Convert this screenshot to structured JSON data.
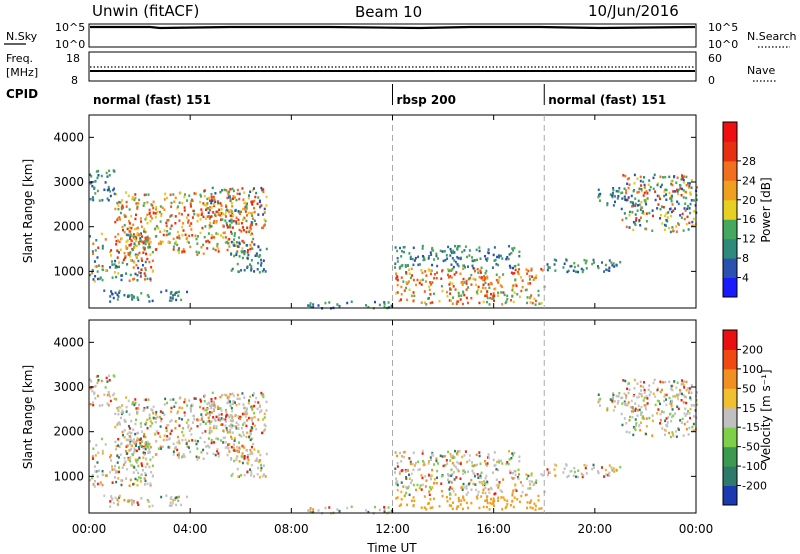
{
  "header": {
    "radar": "Unwin (fitACF)",
    "beam": "Beam 10",
    "date": "10/Jun/2016"
  },
  "params": {
    "nsky_label": "N.Sky",
    "nsearch_label": "N.Search",
    "freq_label_1": "Freq.",
    "freq_label_2": "[MHz]",
    "nave_label": "Nave",
    "cpid_label": "CPID",
    "nsky_ticks": [
      "10^5",
      "10^0"
    ],
    "nsearch_ticks": [
      "10^5",
      "10^0"
    ],
    "freq_ticks": [
      "18",
      "8"
    ],
    "nave_ticks": [
      "60",
      "0"
    ]
  },
  "cpid_segments": [
    {
      "label": "normal (fast) 151",
      "start": 0,
      "end": 12
    },
    {
      "label": "rbsp 200",
      "start": 12,
      "end": 18
    },
    {
      "label": "normal (fast) 151",
      "start": 18,
      "end": 24
    }
  ],
  "chart_data": [
    {
      "type": "heatmap",
      "quantity": "power",
      "ylabel": "Slant Range [km]",
      "xlabel": "Time UT",
      "xlim": [
        0,
        24
      ],
      "ylim": [
        180,
        4500
      ],
      "yticks": [
        1000,
        2000,
        3000,
        4000
      ],
      "colorbar_label": "Power [dB]",
      "colorbar_ticks": [
        "4",
        "8",
        "12",
        "16",
        "20",
        "24",
        "28"
      ],
      "colorbar_colors": [
        "#1a1aff",
        "#2a50b0",
        "#2e8a7a",
        "#44a860",
        "#e8d020",
        "#f0a020",
        "#f07020",
        "#e63010",
        "#ee1010"
      ]
    },
    {
      "type": "heatmap",
      "quantity": "velocity",
      "ylabel": "Slant Range [km]",
      "xlabel": "Time UT",
      "xlim": [
        0,
        24
      ],
      "ylim": [
        180,
        4500
      ],
      "yticks": [
        1000,
        2000,
        3000,
        4000
      ],
      "xticks": [
        "00:00",
        "04:00",
        "08:00",
        "12:00",
        "16:00",
        "20:00",
        "00:00"
      ],
      "colorbar_label": "Velocity [m s⁻¹]",
      "colorbar_ticks": [
        "200",
        "100",
        "50",
        "15",
        "-15",
        "-50",
        "-100",
        "-200"
      ],
      "colorbar_colors": [
        "#1a3ab0",
        "#2e7a6a",
        "#3a9a50",
        "#7ed04a",
        "#c0c0c0",
        "#f0c030",
        "#f09020",
        "#f04a10",
        "#e81010"
      ]
    }
  ]
}
